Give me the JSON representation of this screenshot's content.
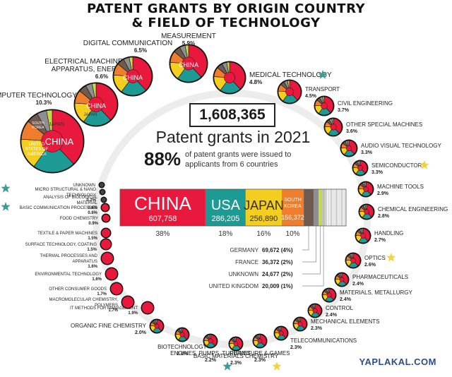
{
  "title_line1": "PATENT GRANTS BY ORIGIN COUNTRY",
  "title_line2": "& FIELD OF TECHNOLOGY",
  "total": "1,608,365",
  "subtitle": "Patent grants in 2021",
  "pct_big": "88%",
  "pct_text": "of patent grants were issued to applicants from 6 countries",
  "footer": "YAPLAKAL.COM",
  "colors": {
    "china": "#e8193c",
    "usa": "#1c9a93",
    "japan": "#f3ce1e",
    "south_korea": "#f07d2e",
    "germany": "#6f5a4d",
    "france": "#8f8f8f",
    "unknown": "#c3d84b",
    "uk": "#bdbdbd",
    "star": "#3d9c93",
    "gold_star": "#f3d33f"
  },
  "chart_data": {
    "type": "bar",
    "title": "Patent grants in 2021",
    "bar": {
      "segments": [
        {
          "label": "CHINA",
          "value": 607758,
          "value_label": "607,758",
          "pct_label": "38%",
          "color": "#e8193c"
        },
        {
          "label": "USA",
          "value": 286205,
          "value_label": "286,205",
          "pct_label": "18%",
          "color": "#1c9a93"
        },
        {
          "label": "JAPAN",
          "value": 256890,
          "value_label": "256,890",
          "pct_label": "16%",
          "color": "#f3ce1e"
        },
        {
          "label": "SOUTH KOREA",
          "value": 156372,
          "value_label": "156,372",
          "pct_label": "10%",
          "color": "#f07d2e"
        },
        {
          "label": "GERMANY",
          "value": 69672,
          "value_label": "69,672 (4%)",
          "color": "#6f5a4d"
        },
        {
          "label": "FRANCE",
          "value": 36372,
          "value_label": "36,372 (2%)",
          "color": "#8f8f8f"
        },
        {
          "label": "UNKNOWN",
          "value": 24677,
          "value_label": "24,677 (2%)",
          "color": "#c3d84b"
        },
        {
          "label": "UNITED KINGDOM",
          "value": 20009,
          "value_label": "20,009 (1%)",
          "color": "#bdbdbd"
        }
      ],
      "others_value": 150410
    },
    "fields": [
      {
        "name": "COMPUTER TECHNOLOGY",
        "pct": 10.3,
        "pct_label": "10.3%",
        "inner_labels": [
          "CHINA",
          "UNITED STATES OF AMERICA",
          "JAPAN",
          "SOUTH KOREA"
        ]
      },
      {
        "name": "ELECTRICAL MACHINERY, APPARATUS, ENERGY",
        "pct": 6.6,
        "pct_label": "6.6%",
        "inner_labels": [
          "CHINA",
          "JAPAN"
        ]
      },
      {
        "name": "DIGITAL COMMUNICATION",
        "pct": 6.5,
        "pct_label": "6.5%",
        "inner_labels": [
          "CHINA"
        ]
      },
      {
        "name": "MEASUREMENT",
        "pct": 5.9,
        "pct_label": "5.9%",
        "inner_labels": [
          "CHINA"
        ]
      },
      {
        "name": "MEDICAL TECHNOLOGY",
        "pct": 4.8,
        "pct_label": "4.8%",
        "star": "teal"
      },
      {
        "name": "TRANSPORT",
        "pct": 4.5,
        "pct_label": "4.5%"
      },
      {
        "name": "CIVIL ENGINEERING",
        "pct": 3.7,
        "pct_label": "3.7%"
      },
      {
        "name": "OTHER SPECIAL MACHINES",
        "pct": 3.6,
        "pct_label": "3.6%"
      },
      {
        "name": "AUDIO VISUAL TECHNOLOGY",
        "pct": 3.3,
        "pct_label": "3.3%"
      },
      {
        "name": "SEMICONDUCTORS",
        "pct": 3.3,
        "pct_label": "3.3%",
        "star": "gold"
      },
      {
        "name": "MACHINE TOOLS",
        "pct": 2.9,
        "pct_label": "2.9%"
      },
      {
        "name": "CHEMICAL ENGINEERING",
        "pct": 2.8,
        "pct_label": "2.8%"
      },
      {
        "name": "HANDLING",
        "pct": 2.7,
        "pct_label": "2.7%"
      },
      {
        "name": "OPTICS",
        "pct": 2.6,
        "pct_label": "2.6%",
        "star": "gold"
      },
      {
        "name": "PHARMACEUTICALS",
        "pct": 2.4,
        "pct_label": "2.4%"
      },
      {
        "name": "MATERIALS, METALLURGY",
        "pct": 2.4,
        "pct_label": "2.4%"
      },
      {
        "name": "CONTROL",
        "pct": 2.4,
        "pct_label": "2.4%"
      },
      {
        "name": "MECHANICAL ELEMENTS",
        "pct": 2.3,
        "pct_label": "2.3%"
      },
      {
        "name": "TELECOMMUNICATIONS",
        "pct": 2.3,
        "pct_label": "2.3%"
      },
      {
        "name": "FURNITURE & GAMES",
        "pct": 2.3,
        "pct_label": "2.3%",
        "star": "gold"
      },
      {
        "name": "BASIC MATERIALS CHEMISTRY",
        "pct": 2.3,
        "pct_label": "2.3%"
      },
      {
        "name": "ENGINES, PUMPS, TURBINES",
        "pct": 2.2,
        "pct_label": "2.2%",
        "star": "teal"
      },
      {
        "name": "BIOTECHNOLOGY",
        "pct": 2.1,
        "pct_label": "2.1%"
      },
      {
        "name": "ORGANIC FINE CHEMISTRY",
        "pct": 2.0,
        "pct_label": "2.0%"
      },
      {
        "name": "IT METHODS FOR MANAGEMENT",
        "pct": 1.9,
        "pct_label": "1.9%"
      },
      {
        "name": "MACROMOLECULAR CHEMISTRY, POLYMERS",
        "pct": 1.7,
        "pct_label": "1.7%"
      },
      {
        "name": "OTHER CONSUMER GOODS",
        "pct": 1.7,
        "pct_label": "1.7%"
      },
      {
        "name": "ENVIRONMENTAL TECHNOLOGY",
        "pct": 1.6,
        "pct_label": "1.6%"
      },
      {
        "name": "THERMAL PROCESSES AND APPARATUS",
        "pct": 1.6,
        "pct_label": "1.6%"
      },
      {
        "name": "SURFACE TECHNOLOGY, COATING",
        "pct": 1.5,
        "pct_label": "1.5%"
      },
      {
        "name": "TEXTILE & PAPER MACHINES",
        "pct": 1.5,
        "pct_label": "1.5%"
      },
      {
        "name": "FOOD CHEMISTRY",
        "pct": 0.9,
        "pct_label": "0.9%"
      },
      {
        "name": "BASIC COMMUNICATION PROCESSES",
        "pct": 0.6,
        "pct_label": "0.6%",
        "star": "teal"
      },
      {
        "name": "ANALYSIS OF BIOLOGICAL MATERIAL",
        "pct": 0.6,
        "pct_label": "0.6%"
      },
      {
        "name": "MICRO STRUCTURAL & NANO TECHNOLOGY",
        "pct": 0.2,
        "pct_label": "0.2%",
        "star": "teal"
      },
      {
        "name": "UNKNOWN",
        "pct": null,
        "pct_label": ""
      }
    ]
  }
}
